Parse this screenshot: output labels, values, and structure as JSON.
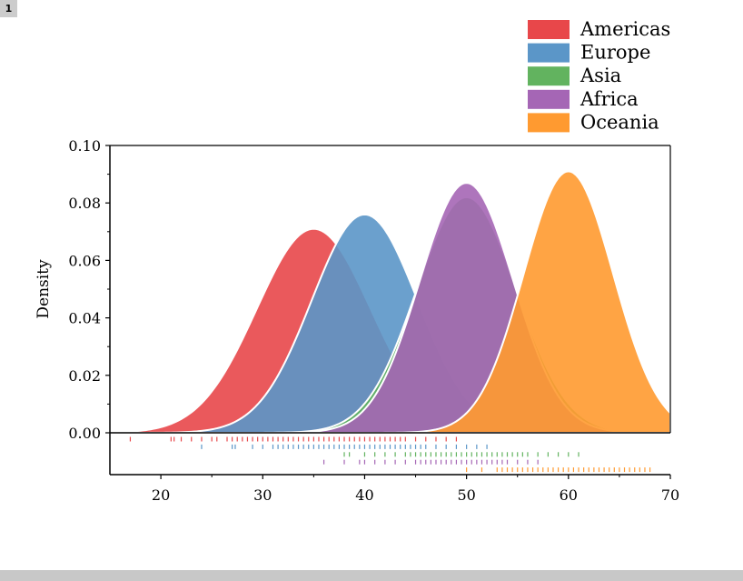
{
  "page": {
    "badge": "1"
  },
  "chart_data": {
    "type": "area",
    "title": "",
    "xlabel": "",
    "ylabel": "Density",
    "xlim": [
      15,
      70
    ],
    "ylim": [
      0,
      0.1
    ],
    "x_ticks": [
      20,
      30,
      40,
      50,
      60,
      70
    ],
    "y_ticks": [
      0.0,
      0.02,
      0.04,
      0.06,
      0.08,
      0.1
    ],
    "y_tick_labels": [
      "0.00",
      "0.02",
      "0.04",
      "0.06",
      "0.08",
      "0.10"
    ],
    "legend_position": "top-right",
    "grid": false,
    "series": [
      {
        "name": "Americas",
        "color": "#e8474a",
        "peak_x": 35,
        "peak_density": 0.071,
        "sd": 5.6,
        "rug": [
          17,
          21,
          21.3,
          22,
          23,
          24,
          25,
          25.5,
          26.5,
          27,
          27.5,
          28,
          28.5,
          29,
          29.5,
          30,
          30.5,
          31,
          31.5,
          32,
          32.5,
          33,
          33.5,
          34,
          34.5,
          35,
          35.5,
          36,
          36.5,
          37,
          37.5,
          38,
          38.5,
          39,
          39.5,
          40,
          40.5,
          41,
          41.5,
          42,
          42.5,
          43,
          43.5,
          44,
          45,
          46,
          47,
          48,
          49
        ]
      },
      {
        "name": "Europe",
        "color": "#5b96c8",
        "peak_x": 40,
        "peak_density": 0.076,
        "sd": 5.2,
        "rug": [
          24,
          27,
          27.3,
          29,
          30,
          31,
          31.5,
          32,
          32.5,
          33,
          33.5,
          34,
          34.5,
          35,
          35.5,
          36,
          36.5,
          37,
          37.5,
          38,
          38.5,
          39,
          39.5,
          40,
          40.5,
          41,
          41.5,
          42,
          42.5,
          43,
          43.5,
          44,
          44.5,
          45,
          45.5,
          46,
          47,
          48,
          49,
          50,
          51,
          52
        ]
      },
      {
        "name": "Asia",
        "color": "#62b35f",
        "peak_x": 50,
        "peak_density": 0.082,
        "sd": 4.9,
        "rug": [
          38,
          38.5,
          40,
          41,
          42,
          43,
          44,
          44.5,
          45,
          45.5,
          46,
          46.5,
          47,
          47.5,
          48,
          48.5,
          49,
          49.5,
          50,
          50.5,
          51,
          51.5,
          52,
          52.5,
          53,
          53.5,
          54,
          54.5,
          55,
          55.5,
          56,
          57,
          58,
          59,
          60,
          61
        ]
      },
      {
        "name": "Africa",
        "color": "#a566b5",
        "peak_x": 50,
        "peak_density": 0.087,
        "sd": 4.6,
        "rug": [
          36,
          38,
          39.5,
          40,
          41,
          42,
          43,
          44,
          45,
          45.5,
          46,
          46.5,
          47,
          47.5,
          48,
          48.5,
          49,
          49.5,
          50,
          50.5,
          51,
          51.5,
          52,
          52.5,
          53,
          53.5,
          54,
          55,
          56,
          57
        ]
      },
      {
        "name": "Oceania",
        "color": "#ff9a30",
        "peak_x": 60,
        "peak_density": 0.091,
        "sd": 4.4,
        "rug": [
          50,
          51.5,
          53,
          53.5,
          54,
          54.5,
          55,
          55.5,
          56,
          56.5,
          57,
          57.5,
          58,
          58.5,
          59,
          59.5,
          60,
          60.5,
          61,
          61.5,
          62,
          62.5,
          63,
          63.5,
          64,
          64.5,
          65,
          65.5,
          66,
          66.5,
          67,
          67.5,
          68
        ]
      }
    ]
  }
}
